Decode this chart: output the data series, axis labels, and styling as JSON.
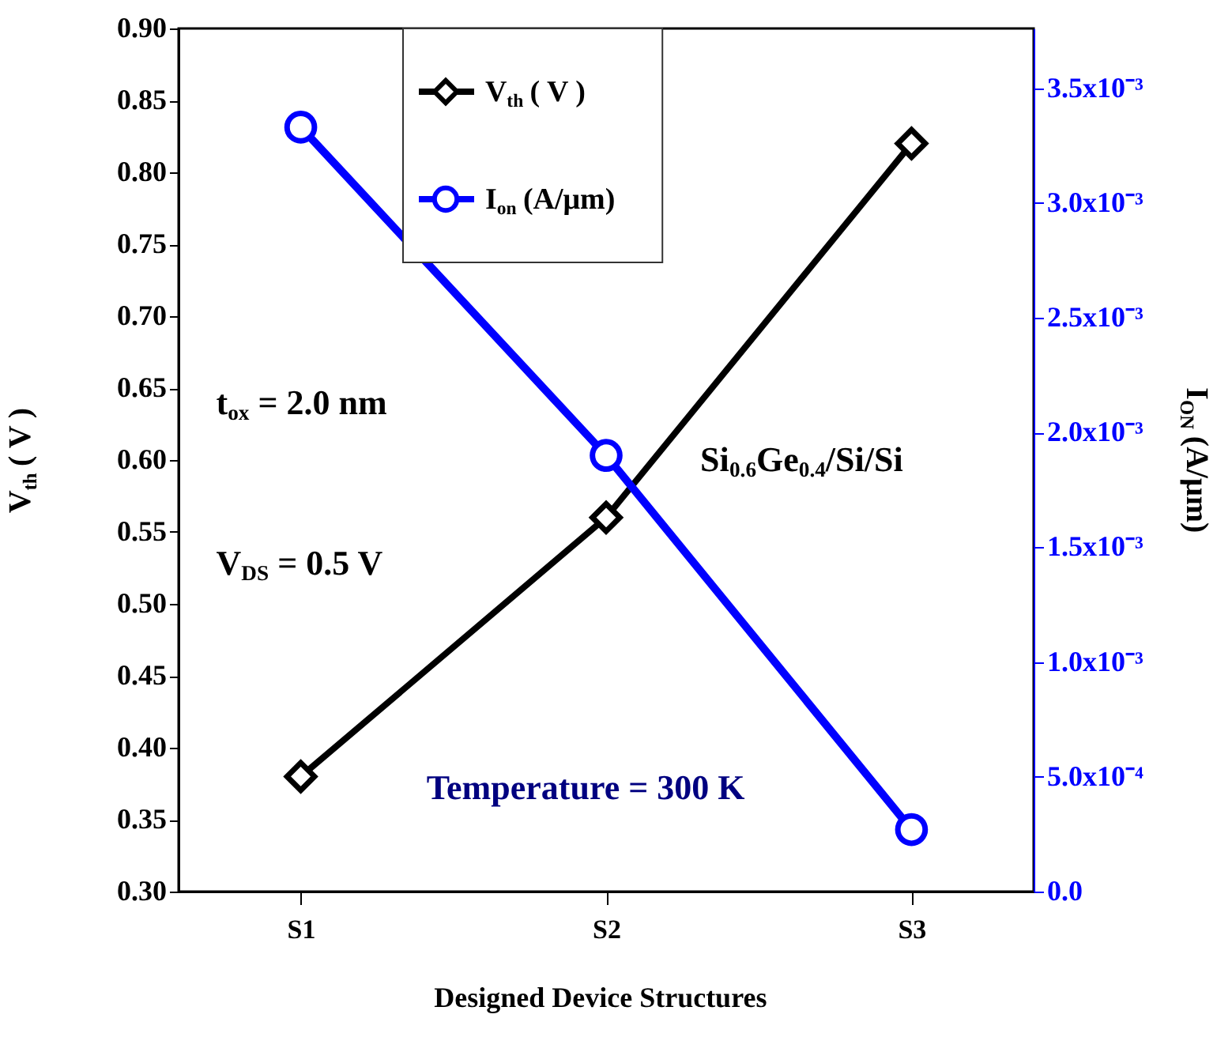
{
  "chart_data": {
    "type": "line",
    "categories": [
      "S1",
      "S2",
      "S3"
    ],
    "xlabel": "Designed Device Structures",
    "ylabel": "V$_{th}$ ( V )",
    "y2label": "I$_{ON}$ (A/μm)",
    "ylim": [
      0.3,
      0.9
    ],
    "yticks": [
      {
        "value": 0.3,
        "label": "0.30"
      },
      0.35,
      {
        "value": 0.4,
        "label": "0.40"
      },
      0.45,
      {
        "value": 0.5,
        "label": "0.50"
      },
      0.55,
      {
        "value": 0.6,
        "label": "0.60"
      },
      0.65,
      {
        "value": 0.7,
        "label": "0.70"
      },
      0.75,
      {
        "value": 0.8,
        "label": "0.80"
      },
      0.85,
      {
        "value": 0.9,
        "label": "0.90"
      }
    ],
    "y2lim": [
      0,
      0.00376
    ],
    "y2ticks": [
      {
        "value": 0,
        "label": "0.0"
      },
      {
        "value": 0.0005,
        "label": "5.0x10⁻⁴"
      },
      {
        "value": 0.001,
        "label": "1.0x10⁻³"
      },
      {
        "value": 0.0015,
        "label": "1.5x10⁻³"
      },
      {
        "value": 0.002,
        "label": "2.0x10⁻³"
      },
      {
        "value": 0.0025,
        "label": "2.5x10⁻³"
      },
      {
        "value": 0.003,
        "label": "3.0x10⁻³"
      },
      {
        "value": 0.0035,
        "label": "3.5x10⁻³"
      }
    ],
    "series": [
      {
        "name": "V$_{th}$ ( V )",
        "color": "#000000",
        "marker": "diamond",
        "values": [
          0.38,
          0.56,
          0.82
        ]
      },
      {
        "name": "I$_{on}$ (A/μm)",
        "color": "#0000ff",
        "marker": "circle",
        "axis": "y2",
        "values": [
          0.00333,
          0.0019,
          0.00027
        ]
      }
    ],
    "annotations": [
      "t$_{ox}$ = 2.0 nm",
      "V$_{DS}$ = 0.5 V",
      "Si$_{0.6}$Ge$_{0.4}$/Si/Si",
      "Temperature = 300 K"
    ],
    "legend": "top",
    "grid": false
  }
}
